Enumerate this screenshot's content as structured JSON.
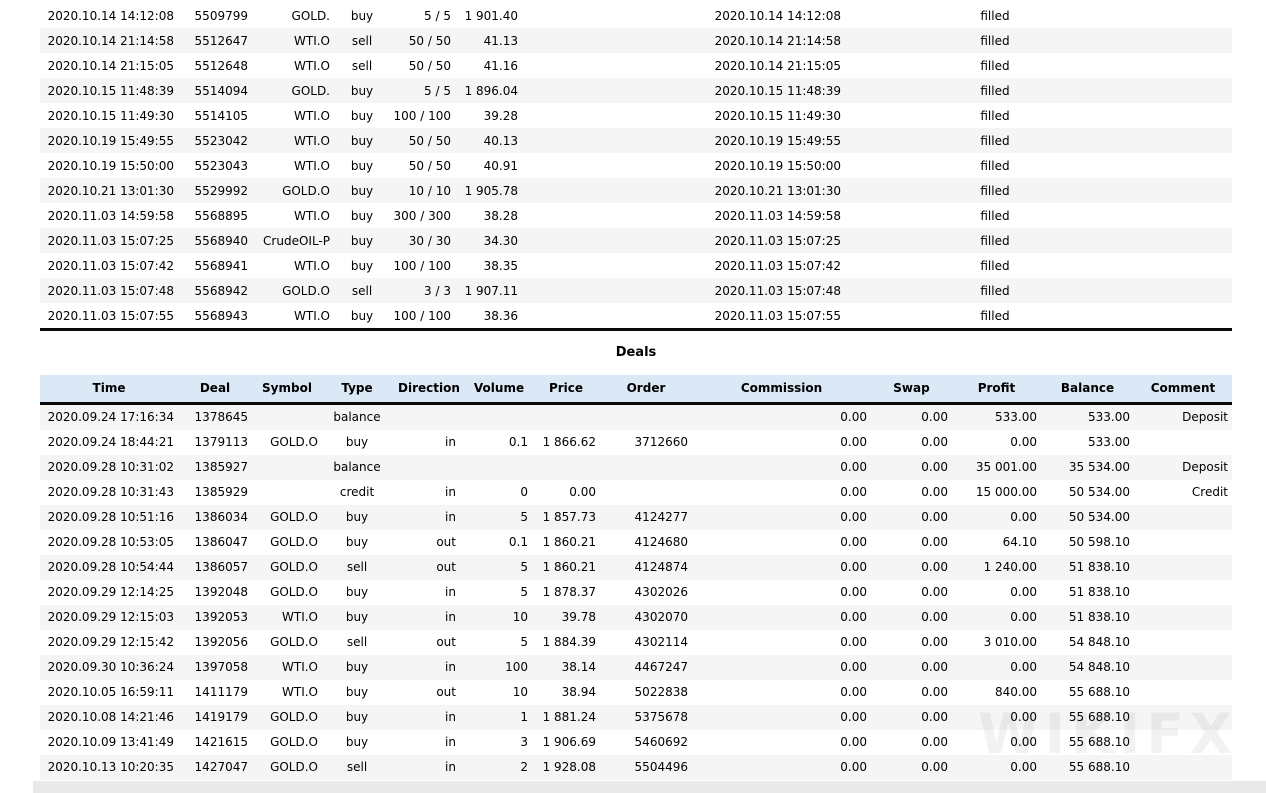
{
  "report": {
    "colors": {
      "deals_header_bg": "#dbe8f6",
      "row_stripe": "#f5f5f5",
      "divider_line": "#0a0a0a",
      "bottom_band": "#e9e9e9"
    },
    "orders": {
      "state_all": "filled",
      "rows": [
        {
          "open_time": "2020.10.14 14:12:08",
          "order": "5509799",
          "symbol": "GOLD.",
          "type": "buy",
          "volume": "5 / 5",
          "price": "1 901.40",
          "time": "2020.10.14 14:12:08",
          "state": "filled"
        },
        {
          "open_time": "2020.10.14 21:14:58",
          "order": "5512647",
          "symbol": "WTI.O",
          "type": "sell",
          "volume": "50 / 50",
          "price": "41.13",
          "time": "2020.10.14 21:14:58",
          "state": "filled"
        },
        {
          "open_time": "2020.10.14 21:15:05",
          "order": "5512648",
          "symbol": "WTI.O",
          "type": "sell",
          "volume": "50 / 50",
          "price": "41.16",
          "time": "2020.10.14 21:15:05",
          "state": "filled"
        },
        {
          "open_time": "2020.10.15 11:48:39",
          "order": "5514094",
          "symbol": "GOLD.",
          "type": "buy",
          "volume": "5 / 5",
          "price": "1 896.04",
          "time": "2020.10.15 11:48:39",
          "state": "filled"
        },
        {
          "open_time": "2020.10.15 11:49:30",
          "order": "5514105",
          "symbol": "WTI.O",
          "type": "buy",
          "volume": "100 / 100",
          "price": "39.28",
          "time": "2020.10.15 11:49:30",
          "state": "filled"
        },
        {
          "open_time": "2020.10.19 15:49:55",
          "order": "5523042",
          "symbol": "WTI.O",
          "type": "buy",
          "volume": "50 / 50",
          "price": "40.13",
          "time": "2020.10.19 15:49:55",
          "state": "filled"
        },
        {
          "open_time": "2020.10.19 15:50:00",
          "order": "5523043",
          "symbol": "WTI.O",
          "type": "buy",
          "volume": "50 / 50",
          "price": "40.91",
          "time": "2020.10.19 15:50:00",
          "state": "filled"
        },
        {
          "open_time": "2020.10.21 13:01:30",
          "order": "5529992",
          "symbol": "GOLD.O",
          "type": "buy",
          "volume": "10 / 10",
          "price": "1 905.78",
          "time": "2020.10.21 13:01:30",
          "state": "filled"
        },
        {
          "open_time": "2020.11.03 14:59:58",
          "order": "5568895",
          "symbol": "WTI.O",
          "type": "buy",
          "volume": "300 / 300",
          "price": "38.28",
          "time": "2020.11.03 14:59:58",
          "state": "filled"
        },
        {
          "open_time": "2020.11.03 15:07:25",
          "order": "5568940",
          "symbol": "CrudeOIL-P",
          "type": "buy",
          "volume": "30 / 30",
          "price": "34.30",
          "time": "2020.11.03 15:07:25",
          "state": "filled"
        },
        {
          "open_time": "2020.11.03 15:07:42",
          "order": "5568941",
          "symbol": "WTI.O",
          "type": "buy",
          "volume": "100 / 100",
          "price": "38.35",
          "time": "2020.11.03 15:07:42",
          "state": "filled"
        },
        {
          "open_time": "2020.11.03 15:07:48",
          "order": "5568942",
          "symbol": "GOLD.O",
          "type": "sell",
          "volume": "3 / 3",
          "price": "1 907.11",
          "time": "2020.11.03 15:07:48",
          "state": "filled"
        },
        {
          "open_time": "2020.11.03 15:07:55",
          "order": "5568943",
          "symbol": "WTI.O",
          "type": "buy",
          "volume": "100 / 100",
          "price": "38.36",
          "time": "2020.11.03 15:07:55",
          "state": "filled"
        }
      ]
    },
    "deals": {
      "title": "Deals",
      "headers": [
        "Time",
        "Deal",
        "Symbol",
        "Type",
        "Direction",
        "Volume",
        "Price",
        "Order",
        "Commission",
        "Swap",
        "Profit",
        "Balance",
        "Comment"
      ],
      "rows": [
        {
          "time": "2020.09.24 17:16:34",
          "deal": "1378645",
          "symbol": "",
          "type": "balance",
          "direction": "",
          "volume": "",
          "price": "",
          "order": "",
          "commission": "0.00",
          "swap": "0.00",
          "profit": "533.00",
          "balance": "533.00",
          "comment": "Deposit"
        },
        {
          "time": "2020.09.24 18:44:21",
          "deal": "1379113",
          "symbol": "GOLD.O",
          "type": "buy",
          "direction": "in",
          "volume": "0.1",
          "price": "1 866.62",
          "order": "3712660",
          "commission": "0.00",
          "swap": "0.00",
          "profit": "0.00",
          "balance": "533.00",
          "comment": ""
        },
        {
          "time": "2020.09.28 10:31:02",
          "deal": "1385927",
          "symbol": "",
          "type": "balance",
          "direction": "",
          "volume": "",
          "price": "",
          "order": "",
          "commission": "0.00",
          "swap": "0.00",
          "profit": "35 001.00",
          "balance": "35 534.00",
          "comment": "Deposit"
        },
        {
          "time": "2020.09.28 10:31:43",
          "deal": "1385929",
          "symbol": "",
          "type": "credit",
          "direction": "in",
          "volume": "0",
          "price": "0.00",
          "order": "",
          "commission": "0.00",
          "swap": "0.00",
          "profit": "15 000.00",
          "balance": "50 534.00",
          "comment": "Credit"
        },
        {
          "time": "2020.09.28 10:51:16",
          "deal": "1386034",
          "symbol": "GOLD.O",
          "type": "buy",
          "direction": "in",
          "volume": "5",
          "price": "1 857.73",
          "order": "4124277",
          "commission": "0.00",
          "swap": "0.00",
          "profit": "0.00",
          "balance": "50 534.00",
          "comment": ""
        },
        {
          "time": "2020.09.28 10:53:05",
          "deal": "1386047",
          "symbol": "GOLD.O",
          "type": "buy",
          "direction": "out",
          "volume": "0.1",
          "price": "1 860.21",
          "order": "4124680",
          "commission": "0.00",
          "swap": "0.00",
          "profit": "64.10",
          "balance": "50 598.10",
          "comment": ""
        },
        {
          "time": "2020.09.28 10:54:44",
          "deal": "1386057",
          "symbol": "GOLD.O",
          "type": "sell",
          "direction": "out",
          "volume": "5",
          "price": "1 860.21",
          "order": "4124874",
          "commission": "0.00",
          "swap": "0.00",
          "profit": "1 240.00",
          "balance": "51 838.10",
          "comment": ""
        },
        {
          "time": "2020.09.29 12:14:25",
          "deal": "1392048",
          "symbol": "GOLD.O",
          "type": "buy",
          "direction": "in",
          "volume": "5",
          "price": "1 878.37",
          "order": "4302026",
          "commission": "0.00",
          "swap": "0.00",
          "profit": "0.00",
          "balance": "51 838.10",
          "comment": ""
        },
        {
          "time": "2020.09.29 12:15:03",
          "deal": "1392053",
          "symbol": "WTI.O",
          "type": "buy",
          "direction": "in",
          "volume": "10",
          "price": "39.78",
          "order": "4302070",
          "commission": "0.00",
          "swap": "0.00",
          "profit": "0.00",
          "balance": "51 838.10",
          "comment": ""
        },
        {
          "time": "2020.09.29 12:15:42",
          "deal": "1392056",
          "symbol": "GOLD.O",
          "type": "sell",
          "direction": "out",
          "volume": "5",
          "price": "1 884.39",
          "order": "4302114",
          "commission": "0.00",
          "swap": "0.00",
          "profit": "3 010.00",
          "balance": "54 848.10",
          "comment": ""
        },
        {
          "time": "2020.09.30 10:36:24",
          "deal": "1397058",
          "symbol": "WTI.O",
          "type": "buy",
          "direction": "in",
          "volume": "100",
          "price": "38.14",
          "order": "4467247",
          "commission": "0.00",
          "swap": "0.00",
          "profit": "0.00",
          "balance": "54 848.10",
          "comment": ""
        },
        {
          "time": "2020.10.05 16:59:11",
          "deal": "1411179",
          "symbol": "WTI.O",
          "type": "buy",
          "direction": "out",
          "volume": "10",
          "price": "38.94",
          "order": "5022838",
          "commission": "0.00",
          "swap": "0.00",
          "profit": "840.00",
          "balance": "55 688.10",
          "comment": ""
        },
        {
          "time": "2020.10.08 14:21:46",
          "deal": "1419179",
          "symbol": "GOLD.O",
          "type": "buy",
          "direction": "in",
          "volume": "1",
          "price": "1 881.24",
          "order": "5375678",
          "commission": "0.00",
          "swap": "0.00",
          "profit": "0.00",
          "balance": "55 688.10",
          "comment": ""
        },
        {
          "time": "2020.10.09 13:41:49",
          "deal": "1421615",
          "symbol": "GOLD.O",
          "type": "buy",
          "direction": "in",
          "volume": "3",
          "price": "1 906.69",
          "order": "5460692",
          "commission": "0.00",
          "swap": "0.00",
          "profit": "0.00",
          "balance": "55 688.10",
          "comment": ""
        },
        {
          "time": "2020.10.13 10:20:35",
          "deal": "1427047",
          "symbol": "GOLD.O",
          "type": "sell",
          "direction": "in",
          "volume": "2",
          "price": "1 928.08",
          "order": "5504496",
          "commission": "0.00",
          "swap": "0.00",
          "profit": "0.00",
          "balance": "55 688.10",
          "comment": ""
        }
      ]
    },
    "watermark": "WIKIFX"
  }
}
